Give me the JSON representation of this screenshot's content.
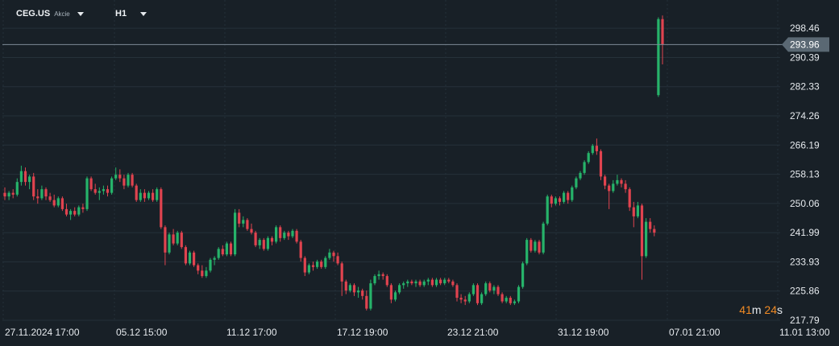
{
  "header": {
    "symbol": "CEG.US",
    "instrument_type": "Akcie",
    "timeframe": "H1"
  },
  "timer": {
    "minutes": "41",
    "minutes_unit": "m",
    "seconds": "24",
    "seconds_unit": "s"
  },
  "colors": {
    "background": "#182027",
    "grid": "#25313a",
    "up": "#26b36a",
    "down": "#e0434f",
    "text": "#e6eaee",
    "price_line": "#7d8a96",
    "price_label_bg": "#5a6873",
    "timer_accent": "#f08a24"
  },
  "chart_data": {
    "type": "candlestick",
    "current_price": 293.96,
    "ylim": [
      217.79,
      302.5
    ],
    "y_ticks": [
      298.46,
      290.39,
      282.33,
      274.26,
      266.19,
      258.13,
      250.06,
      241.99,
      233.93,
      225.86,
      217.79
    ],
    "x_ticks": [
      "27.11.2024  17:00",
      "05.12  15:00",
      "11.12  17:00",
      "17.12  19:00",
      "23.12  21:00",
      "31.12  19:00",
      "07.01  21:00",
      "11.01  13:00"
    ],
    "candles": [
      [
        253.0,
        254.5,
        251.0,
        252.0
      ],
      [
        252.0,
        253.5,
        251.0,
        253.0
      ],
      [
        253.0,
        254.0,
        251.5,
        252.5
      ],
      [
        252.5,
        257.0,
        252.0,
        256.0
      ],
      [
        256.0,
        260.5,
        255.0,
        259.0
      ],
      [
        259.0,
        260.0,
        255.0,
        256.0
      ],
      [
        256.0,
        258.0,
        254.0,
        257.5
      ],
      [
        257.5,
        258.5,
        251.0,
        252.0
      ],
      [
        252.0,
        254.0,
        250.0,
        251.5
      ],
      [
        251.5,
        255.0,
        251.0,
        254.0
      ],
      [
        254.0,
        254.5,
        251.0,
        252.0
      ],
      [
        252.0,
        253.0,
        250.5,
        251.0
      ],
      [
        251.0,
        252.5,
        249.0,
        249.5
      ],
      [
        249.5,
        252.0,
        249.0,
        251.5
      ],
      [
        251.5,
        252.0,
        248.0,
        248.5
      ],
      [
        248.5,
        250.0,
        246.5,
        247.0
      ],
      [
        247.0,
        248.5,
        245.5,
        248.0
      ],
      [
        248.0,
        249.0,
        246.5,
        247.0
      ],
      [
        247.0,
        249.5,
        246.5,
        249.0
      ],
      [
        249.0,
        250.0,
        247.5,
        248.5
      ],
      [
        248.5,
        257.5,
        248.0,
        257.0
      ],
      [
        257.0,
        257.5,
        253.5,
        254.0
      ],
      [
        254.0,
        255.5,
        252.5,
        253.0
      ],
      [
        253.0,
        254.5,
        251.0,
        253.5
      ],
      [
        253.5,
        255.0,
        252.5,
        254.0
      ],
      [
        254.0,
        255.0,
        252.0,
        253.0
      ],
      [
        253.0,
        257.5,
        252.5,
        257.0
      ],
      [
        257.0,
        260.0,
        256.5,
        258.0
      ],
      [
        258.0,
        259.5,
        256.0,
        257.0
      ],
      [
        257.0,
        258.0,
        254.0,
        255.0
      ],
      [
        255.0,
        258.5,
        254.5,
        258.0
      ],
      [
        258.0,
        258.5,
        254.5,
        255.0
      ],
      [
        255.0,
        255.5,
        250.5,
        251.0
      ],
      [
        251.0,
        254.0,
        250.5,
        253.0
      ],
      [
        253.0,
        254.0,
        250.5,
        251.5
      ],
      [
        251.5,
        253.5,
        251.0,
        253.0
      ],
      [
        253.0,
        254.0,
        250.5,
        251.0
      ],
      [
        251.0,
        254.5,
        250.5,
        254.0
      ],
      [
        254.0,
        254.5,
        243.0,
        243.5
      ],
      [
        243.5,
        244.0,
        233.0,
        236.5
      ],
      [
        236.5,
        242.0,
        236.0,
        241.5
      ],
      [
        241.5,
        243.0,
        238.5,
        239.0
      ],
      [
        239.0,
        242.5,
        238.5,
        242.0
      ],
      [
        242.0,
        242.5,
        237.5,
        238.0
      ],
      [
        238.0,
        238.5,
        233.0,
        233.5
      ],
      [
        233.5,
        237.0,
        233.0,
        236.5
      ],
      [
        236.5,
        237.0,
        232.5,
        233.0
      ],
      [
        233.0,
        233.5,
        230.5,
        231.5
      ],
      [
        231.5,
        233.0,
        229.5,
        230.0
      ],
      [
        230.0,
        232.5,
        229.5,
        231.5
      ],
      [
        231.5,
        235.0,
        231.0,
        234.5
      ],
      [
        234.5,
        235.5,
        233.0,
        235.0
      ],
      [
        235.0,
        238.0,
        234.5,
        237.5
      ],
      [
        237.5,
        238.5,
        235.5,
        236.0
      ],
      [
        236.0,
        239.5,
        235.5,
        239.0
      ],
      [
        239.0,
        239.5,
        235.5,
        236.0
      ],
      [
        236.0,
        248.5,
        235.5,
        247.5
      ],
      [
        247.5,
        248.5,
        243.5,
        244.5
      ],
      [
        244.5,
        246.5,
        243.5,
        245.5
      ],
      [
        245.5,
        246.0,
        242.5,
        243.0
      ],
      [
        243.0,
        244.5,
        241.5,
        242.0
      ],
      [
        242.0,
        242.5,
        238.0,
        238.5
      ],
      [
        238.5,
        240.5,
        237.5,
        240.0
      ],
      [
        240.0,
        240.5,
        237.0,
        237.5
      ],
      [
        237.5,
        241.0,
        237.0,
        240.5
      ],
      [
        240.5,
        241.0,
        238.5,
        239.5
      ],
      [
        239.5,
        244.0,
        239.0,
        243.5
      ],
      [
        243.5,
        244.0,
        239.5,
        240.5
      ],
      [
        240.5,
        242.5,
        240.0,
        242.0
      ],
      [
        242.0,
        242.5,
        240.0,
        241.0
      ],
      [
        241.0,
        243.0,
        240.5,
        242.5
      ],
      [
        242.5,
        243.0,
        239.0,
        239.5
      ],
      [
        239.5,
        240.0,
        234.0,
        235.0
      ],
      [
        235.0,
        235.5,
        230.0,
        231.0
      ],
      [
        231.0,
        233.5,
        230.5,
        233.0
      ],
      [
        233.0,
        234.0,
        231.5,
        232.5
      ],
      [
        232.5,
        234.5,
        232.0,
        234.0
      ],
      [
        234.0,
        234.5,
        232.0,
        232.5
      ],
      [
        232.5,
        235.5,
        232.0,
        235.0
      ],
      [
        235.0,
        237.5,
        234.5,
        236.5
      ],
      [
        236.5,
        237.0,
        234.0,
        235.5
      ],
      [
        235.5,
        236.5,
        233.0,
        233.5
      ],
      [
        233.5,
        234.0,
        224.5,
        228.5
      ],
      [
        228.5,
        229.0,
        225.0,
        226.0
      ],
      [
        226.0,
        228.0,
        225.5,
        227.5
      ],
      [
        227.5,
        228.0,
        224.5,
        225.5
      ],
      [
        225.5,
        227.0,
        224.0,
        226.0
      ],
      [
        226.0,
        226.5,
        223.5,
        224.5
      ],
      [
        224.5,
        226.0,
        220.5,
        221.0
      ],
      [
        221.0,
        229.0,
        220.5,
        228.0
      ],
      [
        228.0,
        230.5,
        227.5,
        230.0
      ],
      [
        230.0,
        231.5,
        229.0,
        230.5
      ],
      [
        230.5,
        231.0,
        229.0,
        230.0
      ],
      [
        230.0,
        230.5,
        227.0,
        227.5
      ],
      [
        227.5,
        228.0,
        222.5,
        223.5
      ],
      [
        223.5,
        226.0,
        223.0,
        225.5
      ],
      [
        225.5,
        228.0,
        225.0,
        227.5
      ],
      [
        227.5,
        228.5,
        226.5,
        228.0
      ],
      [
        228.0,
        229.0,
        227.0,
        228.5
      ],
      [
        228.5,
        229.0,
        227.5,
        228.0
      ],
      [
        228.0,
        229.0,
        227.0,
        228.5
      ],
      [
        228.5,
        229.0,
        227.0,
        227.5
      ],
      [
        227.5,
        229.0,
        227.0,
        228.5
      ],
      [
        228.5,
        229.5,
        227.5,
        229.0
      ],
      [
        229.0,
        229.5,
        227.0,
        227.5
      ],
      [
        227.5,
        229.5,
        227.0,
        229.0
      ],
      [
        229.0,
        229.5,
        227.5,
        228.0
      ],
      [
        228.0,
        229.5,
        227.5,
        229.0
      ],
      [
        229.0,
        229.5,
        228.0,
        228.5
      ],
      [
        228.5,
        229.0,
        227.0,
        227.5
      ],
      [
        227.5,
        228.0,
        223.0,
        224.0
      ],
      [
        224.0,
        225.0,
        222.5,
        223.5
      ],
      [
        223.5,
        224.5,
        222.0,
        223.0
      ],
      [
        223.0,
        225.5,
        222.5,
        225.0
      ],
      [
        225.0,
        228.0,
        224.5,
        227.5
      ],
      [
        227.5,
        228.0,
        222.0,
        222.5
      ],
      [
        222.5,
        225.5,
        222.0,
        225.0
      ],
      [
        225.0,
        228.5,
        224.5,
        228.0
      ],
      [
        228.0,
        228.5,
        225.5,
        226.0
      ],
      [
        226.0,
        227.5,
        225.0,
        227.0
      ],
      [
        227.0,
        227.5,
        224.5,
        225.0
      ],
      [
        225.0,
        225.5,
        222.5,
        223.0
      ],
      [
        223.0,
        224.5,
        222.5,
        224.0
      ],
      [
        224.0,
        224.5,
        222.0,
        222.5
      ],
      [
        222.5,
        223.5,
        222.0,
        223.0
      ],
      [
        223.0,
        227.5,
        222.5,
        227.0
      ],
      [
        227.0,
        234.0,
        226.5,
        233.5
      ],
      [
        233.5,
        240.5,
        233.0,
        240.0
      ],
      [
        240.0,
        240.5,
        236.5,
        237.0
      ],
      [
        237.0,
        240.0,
        236.5,
        239.5
      ],
      [
        239.5,
        240.0,
        236.0,
        236.5
      ],
      [
        236.5,
        245.0,
        236.0,
        244.5
      ],
      [
        244.5,
        252.5,
        244.0,
        252.0
      ],
      [
        252.0,
        252.5,
        249.0,
        250.0
      ],
      [
        250.0,
        252.0,
        249.5,
        251.5
      ],
      [
        251.5,
        252.0,
        249.5,
        250.5
      ],
      [
        250.5,
        253.5,
        250.0,
        253.0
      ],
      [
        253.0,
        253.5,
        250.0,
        251.0
      ],
      [
        251.0,
        255.0,
        250.5,
        254.5
      ],
      [
        254.5,
        257.5,
        254.0,
        257.0
      ],
      [
        257.0,
        259.0,
        256.5,
        258.5
      ],
      [
        258.5,
        262.0,
        258.0,
        261.5
      ],
      [
        261.5,
        264.5,
        261.0,
        264.0
      ],
      [
        264.0,
        266.5,
        263.5,
        266.0
      ],
      [
        266.0,
        268.0,
        263.5,
        264.5
      ],
      [
        264.5,
        265.0,
        256.5,
        257.5
      ],
      [
        257.5,
        258.0,
        254.0,
        255.0
      ],
      [
        255.0,
        255.5,
        248.5,
        253.5
      ],
      [
        253.5,
        256.5,
        253.0,
        255.5
      ],
      [
        255.5,
        258.0,
        255.0,
        256.5
      ],
      [
        256.5,
        257.0,
        254.5,
        255.5
      ],
      [
        255.5,
        256.5,
        253.0,
        254.0
      ],
      [
        254.0,
        254.5,
        248.0,
        249.0
      ],
      [
        249.0,
        250.5,
        243.5,
        246.5
      ],
      [
        246.5,
        250.5,
        246.0,
        249.5
      ],
      [
        249.5,
        250.0,
        229.0,
        235.5
      ],
      [
        235.5,
        246.0,
        235.0,
        245.0
      ],
      [
        245.0,
        246.0,
        242.0,
        243.0
      ],
      [
        243.0,
        244.0,
        241.0,
        242.0
      ],
      [
        280.0,
        301.5,
        279.5,
        301.0
      ],
      [
        301.0,
        302.0,
        288.5,
        293.96
      ]
    ]
  }
}
